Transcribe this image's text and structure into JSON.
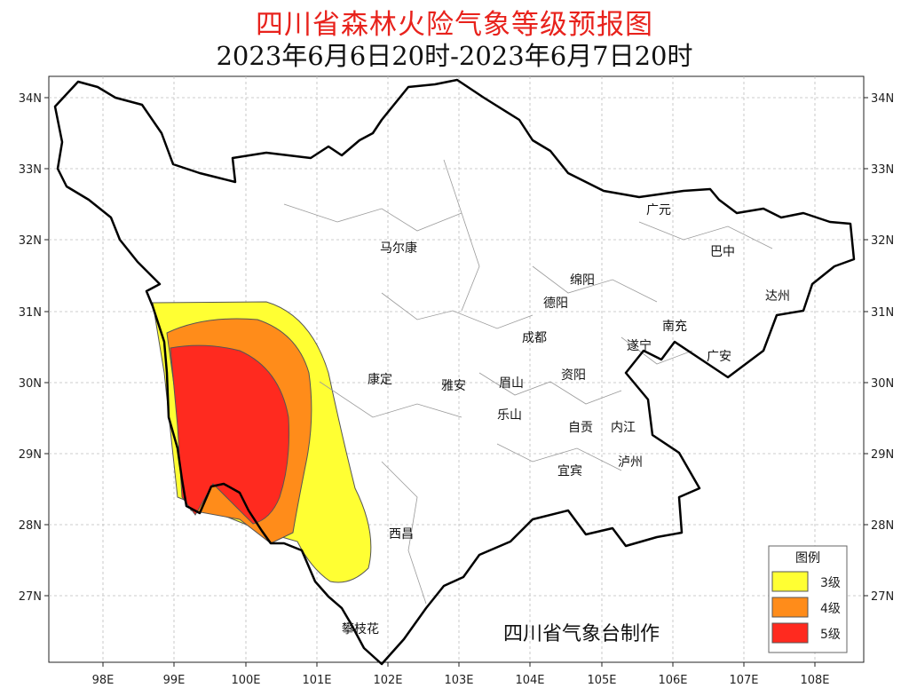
{
  "title": "四川省森林火险气象等级预报图",
  "subtitle": "2023年6月6日20时-2023年6月7日20时",
  "axes": {
    "lon_ticks": [
      "98E",
      "99E",
      "100E",
      "101E",
      "102E",
      "103E",
      "104E",
      "105E",
      "106E",
      "107E",
      "108E"
    ],
    "lat_ticks": [
      "34N",
      "33N",
      "32N",
      "31N",
      "30N",
      "29N",
      "28N",
      "27N"
    ]
  },
  "cities": [
    "马尔康",
    "广元",
    "巴中",
    "绵阳",
    "德阳",
    "达州",
    "南充",
    "成都",
    "遂宁",
    "广安",
    "康定",
    "雅安",
    "眉山",
    "资阳",
    "乐山",
    "自贡",
    "内江",
    "泸州",
    "宜宾",
    "西昌",
    "攀枝花"
  ],
  "legend": {
    "title": "图例",
    "items": [
      {
        "label": "3级",
        "color": "#ffff33"
      },
      {
        "label": "4级",
        "color": "#ff8c1a"
      },
      {
        "label": "5级",
        "color": "#ff2a1f"
      }
    ]
  },
  "credit": "四川省气象台制作"
}
